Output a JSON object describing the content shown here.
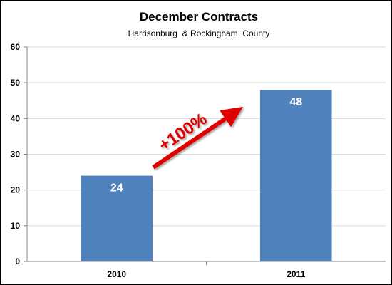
{
  "chart_data": {
    "type": "bar",
    "title": "December Contracts",
    "subtitle": "Harrisonburg  & Rockingham  County",
    "categories": [
      "2010",
      "2011"
    ],
    "values": [
      24,
      48
    ],
    "xlabel": "",
    "ylabel": "",
    "ylim": [
      0,
      60
    ],
    "yticks": [
      0,
      10,
      20,
      30,
      40,
      50,
      60
    ],
    "grid": true,
    "legend": "none",
    "annotation": "+100%",
    "colors": {
      "bar": "#4F81BD",
      "annotation": "#E00000",
      "grid": "#D9D9D9",
      "axis": "#868686",
      "text": "#000000",
      "data_label": "#ffffff"
    }
  }
}
